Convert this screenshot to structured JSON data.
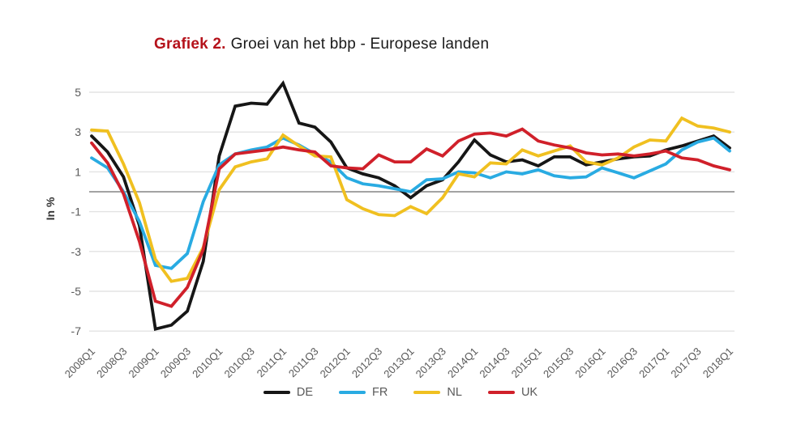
{
  "title": {
    "accent": "Grafiek 2.",
    "main": "Groei van het bbp - Europese landen"
  },
  "colors": {
    "title_accent": "#b5121b",
    "title_text": "#1a1a1a",
    "grid": "#e3e3e3",
    "zero_line": "#a3a3a3",
    "axis_text": "#595959",
    "y_label_text": "#333333"
  },
  "chart_data": {
    "type": "line",
    "title": "Grafiek 2. Groei van het bbp - Europese landen",
    "ylabel": "In %",
    "xlabel": "",
    "ylim": [
      -7.5,
      6
    ],
    "y_ticks": [
      5,
      3,
      1,
      -1,
      -3,
      -5,
      -7
    ],
    "zero_line": true,
    "grid": "horizontal",
    "legend_position": "bottom",
    "x_tick_every": 2,
    "x_tick_labels": [
      "2008Q1",
      "2008Q3",
      "2009Q1",
      "2009Q3",
      "2010Q1",
      "2010Q3",
      "2011Q1",
      "2011Q3",
      "2012Q1",
      "2012Q3",
      "2013Q1",
      "2013Q3",
      "2014Q1",
      "2014Q3",
      "2015Q1",
      "2015Q3",
      "2016Q1",
      "2016Q3",
      "2017Q1",
      "2017Q3",
      "2018Q1"
    ],
    "x": [
      "2008Q1",
      "2008Q2",
      "2008Q3",
      "2008Q4",
      "2009Q1",
      "2009Q2",
      "2009Q3",
      "2009Q4",
      "2010Q1",
      "2010Q2",
      "2010Q3",
      "2010Q4",
      "2011Q1",
      "2011Q2",
      "2011Q3",
      "2011Q4",
      "2012Q1",
      "2012Q2",
      "2012Q3",
      "2012Q4",
      "2013Q1",
      "2013Q2",
      "2013Q3",
      "2013Q4",
      "2014Q1",
      "2014Q2",
      "2014Q3",
      "2014Q4",
      "2015Q1",
      "2015Q2",
      "2015Q3",
      "2015Q4",
      "2016Q1",
      "2016Q2",
      "2016Q3",
      "2016Q4",
      "2017Q1",
      "2017Q2",
      "2017Q3",
      "2017Q4",
      "2018Q1"
    ],
    "series": [
      {
        "name": "DE",
        "color": "#161616",
        "values": [
          2.8,
          2.0,
          0.75,
          -1.7,
          -6.9,
          -6.7,
          -6.0,
          -3.5,
          1.8,
          4.3,
          4.45,
          4.4,
          5.45,
          3.45,
          3.25,
          2.5,
          1.2,
          0.9,
          0.7,
          0.3,
          -0.3,
          0.3,
          0.6,
          1.5,
          2.6,
          1.85,
          1.5,
          1.6,
          1.3,
          1.75,
          1.75,
          1.35,
          1.5,
          1.65,
          1.75,
          1.8,
          2.1,
          2.3,
          2.55,
          2.8,
          2.2
        ]
      },
      {
        "name": "FR",
        "color": "#29abe2",
        "values": [
          1.7,
          1.2,
          0.0,
          -1.5,
          -3.7,
          -3.85,
          -3.1,
          -0.5,
          1.35,
          1.9,
          2.1,
          2.25,
          2.7,
          2.35,
          1.9,
          1.5,
          0.7,
          0.4,
          0.3,
          0.15,
          0.0,
          0.6,
          0.65,
          1.0,
          0.95,
          0.7,
          1.0,
          0.9,
          1.1,
          0.8,
          0.7,
          0.75,
          1.2,
          0.95,
          0.7,
          1.05,
          1.4,
          2.1,
          2.5,
          2.7,
          2.05
        ]
      },
      {
        "name": "NL",
        "color": "#f0c020",
        "values": [
          3.1,
          3.05,
          1.4,
          -0.55,
          -3.4,
          -4.5,
          -4.35,
          -2.8,
          0.1,
          1.25,
          1.5,
          1.65,
          2.85,
          2.3,
          1.8,
          1.75,
          -0.4,
          -0.85,
          -1.15,
          -1.2,
          -0.75,
          -1.1,
          -0.3,
          0.9,
          0.75,
          1.45,
          1.4,
          2.1,
          1.8,
          2.05,
          2.3,
          1.5,
          1.35,
          1.7,
          2.25,
          2.6,
          2.55,
          3.7,
          3.3,
          3.2,
          3.0
        ]
      },
      {
        "name": "UK",
        "color": "#d0202a",
        "values": [
          2.45,
          1.45,
          -0.1,
          -2.5,
          -5.5,
          -5.75,
          -4.8,
          -2.9,
          1.15,
          1.9,
          2.0,
          2.1,
          2.25,
          2.1,
          2.0,
          1.3,
          1.2,
          1.15,
          1.85,
          1.5,
          1.5,
          2.15,
          1.8,
          2.55,
          2.9,
          2.95,
          2.8,
          3.15,
          2.55,
          2.35,
          2.2,
          1.95,
          1.85,
          1.9,
          1.8,
          1.9,
          2.05,
          1.7,
          1.6,
          1.3,
          1.1
        ]
      }
    ]
  }
}
